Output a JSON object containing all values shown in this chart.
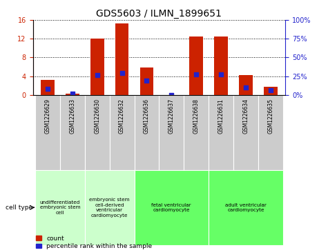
{
  "title": "GDS5603 / ILMN_1899651",
  "samples": [
    "GSM1226629",
    "GSM1226633",
    "GSM1226630",
    "GSM1226632",
    "GSM1226636",
    "GSM1226637",
    "GSM1226638",
    "GSM1226631",
    "GSM1226634",
    "GSM1226635"
  ],
  "count_values": [
    3.2,
    0.3,
    12.0,
    15.3,
    5.8,
    0.05,
    12.5,
    12.5,
    4.2,
    1.8
  ],
  "percentile_values": [
    8.0,
    1.5,
    27.0,
    29.0,
    19.0,
    0.3,
    27.5,
    27.5,
    10.0,
    6.5
  ],
  "bar_color": "#cc2200",
  "dot_color": "#2222cc",
  "ylim_left": [
    0,
    16
  ],
  "ylim_right": [
    0,
    100
  ],
  "yticks_left": [
    0,
    4,
    8,
    12,
    16
  ],
  "yticks_right": [
    0,
    25,
    50,
    75,
    100
  ],
  "yticklabels_right": [
    "0%",
    "25%",
    "50%",
    "75%",
    "100%"
  ],
  "cell_type_groups": [
    {
      "label": "undifferentiated\nembryonic stem\ncell",
      "start": 0,
      "end": 2,
      "color": "#ccffcc"
    },
    {
      "label": "embryonic stem\ncell-derived\nventricular\ncardiomyocyte",
      "start": 2,
      "end": 4,
      "color": "#ccffcc"
    },
    {
      "label": "fetal ventricular\ncardiomyocyte",
      "start": 4,
      "end": 7,
      "color": "#66ff66"
    },
    {
      "label": "adult ventricular\ncardiomyocyte",
      "start": 7,
      "end": 10,
      "color": "#66ff66"
    }
  ],
  "background_color": "#ffffff",
  "axis_label_color_left": "#cc2200",
  "axis_label_color_right": "#2222cc",
  "legend_count_label": "count",
  "legend_percentile_label": "percentile rank within the sample",
  "cell_type_label": "cell type",
  "bar_width": 0.55
}
